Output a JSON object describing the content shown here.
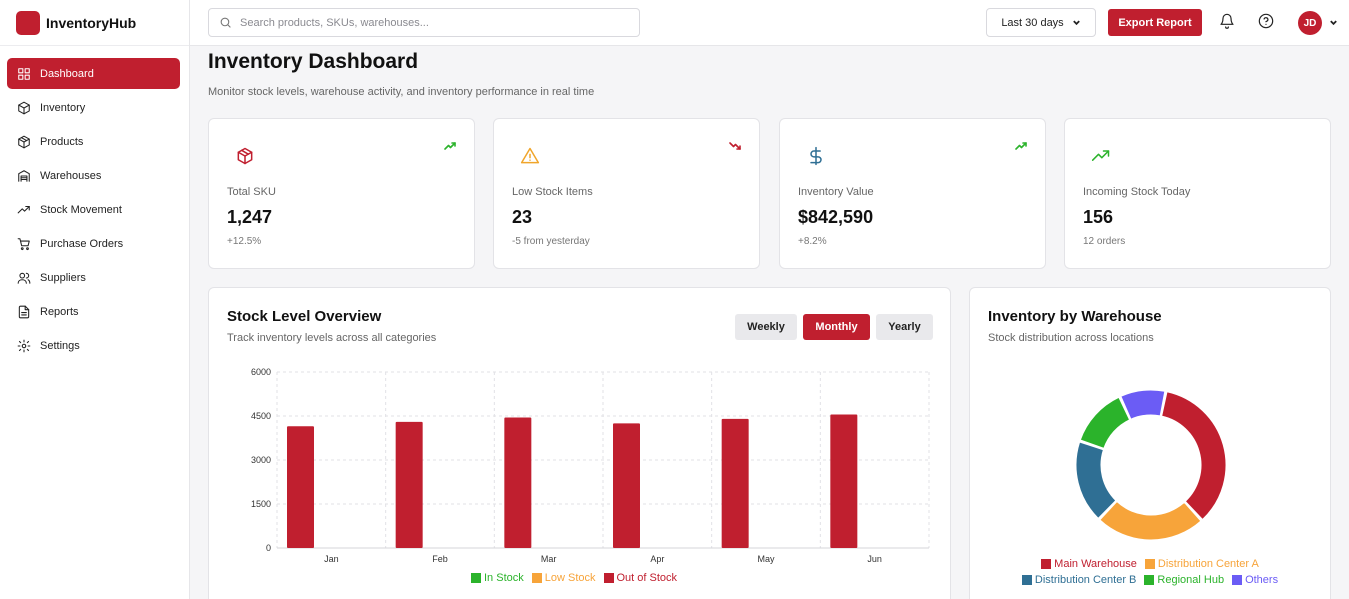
{
  "app": {
    "name": "InventoryHub"
  },
  "sidebar": {
    "items": [
      {
        "label": "Dashboard",
        "icon": "grid-icon",
        "active": true
      },
      {
        "label": "Inventory",
        "icon": "box-icon"
      },
      {
        "label": "Products",
        "icon": "package-icon"
      },
      {
        "label": "Warehouses",
        "icon": "warehouse-icon"
      },
      {
        "label": "Stock Movement",
        "icon": "trend-icon"
      },
      {
        "label": "Purchase Orders",
        "icon": "cart-icon"
      },
      {
        "label": "Suppliers",
        "icon": "users-icon"
      },
      {
        "label": "Reports",
        "icon": "file-icon"
      },
      {
        "label": "Settings",
        "icon": "gear-icon"
      }
    ]
  },
  "topbar": {
    "search_placeholder": "Search products, SKUs, warehouses...",
    "range_label": "Last 30 days",
    "export_label": "Export Report",
    "avatar_initials": "JD"
  },
  "page": {
    "title": "Inventory Dashboard",
    "subtitle": "Monitor stock levels, warehouse activity, and inventory performance in real time"
  },
  "stats": [
    {
      "label": "Total SKU",
      "value": "1,247",
      "note": "+12.5%",
      "icon": "package-icon",
      "color": "#c01f2f",
      "trend": "up"
    },
    {
      "label": "Low Stock Items",
      "value": "23",
      "note": "-5 from yesterday",
      "icon": "warning-icon",
      "color": "#f0a52b",
      "trend": "down"
    },
    {
      "label": "Inventory Value",
      "value": "$842,590",
      "note": "+8.2%",
      "icon": "dollar-icon",
      "color": "#2f6f94",
      "trend": "up"
    },
    {
      "label": "Incoming Stock Today",
      "value": "156",
      "note": "12 orders",
      "icon": "trending-up-icon",
      "color": "#2bb32b",
      "trend": "none"
    }
  ],
  "stock_panel": {
    "title": "Stock Level Overview",
    "subtitle": "Track inventory levels across all categories",
    "tabs": [
      {
        "label": "Weekly",
        "active": false
      },
      {
        "label": "Monthly",
        "active": true
      },
      {
        "label": "Yearly",
        "active": false
      }
    ]
  },
  "warehouse_panel": {
    "title": "Inventory by Warehouse",
    "subtitle": "Stock distribution across locations"
  },
  "chart_data": [
    {
      "type": "bar",
      "categories": [
        "Jan",
        "Feb",
        "Mar",
        "Apr",
        "May",
        "Jun"
      ],
      "series": [
        {
          "name": "In Stock",
          "color": "#2bb32b",
          "values": [
            0,
            0,
            0,
            0,
            0,
            0
          ]
        },
        {
          "name": "Low Stock",
          "color": "#f7a43a",
          "values": [
            0,
            0,
            0,
            0,
            0,
            0
          ]
        },
        {
          "name": "Out of Stock",
          "color": "#c01f2f",
          "values": [
            4150,
            4300,
            4450,
            4250,
            4400,
            4550
          ]
        }
      ],
      "yticks": [
        0,
        1500,
        3000,
        4500,
        6000
      ],
      "ylim": [
        0,
        6000
      ],
      "grid": true,
      "legend": "bottom"
    },
    {
      "type": "pie",
      "donut": true,
      "slices": [
        {
          "label": "Main Warehouse",
          "value": 35,
          "color": "#c01f2f"
        },
        {
          "label": "Distribution Center A",
          "value": 24,
          "color": "#f7a43a"
        },
        {
          "label": "Distribution Center B",
          "value": 18,
          "color": "#2f6f94"
        },
        {
          "label": "Regional Hub",
          "value": 13,
          "color": "#2bb32b"
        },
        {
          "label": "Others",
          "value": 10,
          "color": "#6b5cf5"
        }
      ],
      "legend": "bottom"
    }
  ]
}
